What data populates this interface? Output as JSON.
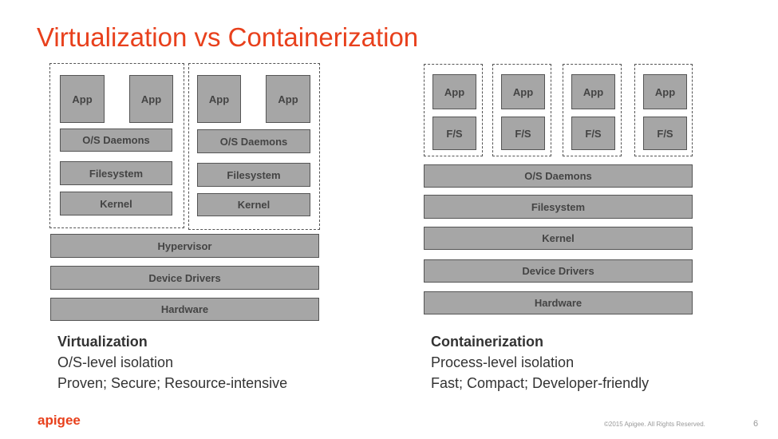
{
  "title": "Virtualization vs Containerization",
  "virtualization": {
    "vms": [
      {
        "apps": [
          "App",
          "App"
        ],
        "os_daemons": "O/S Daemons",
        "filesystem": "Filesystem",
        "kernel": "Kernel"
      },
      {
        "apps": [
          "App",
          "App"
        ],
        "os_daemons": "O/S Daemons",
        "filesystem": "Filesystem",
        "kernel": "Kernel"
      }
    ],
    "hypervisor": "Hypervisor",
    "device_drivers": "Device Drivers",
    "hardware": "Hardware",
    "caption": {
      "heading": "Virtualization",
      "line1": "O/S-level isolation",
      "line2": "Proven; Secure; Resource-intensive"
    }
  },
  "containerization": {
    "containers": [
      {
        "app": "App",
        "fs": "F/S"
      },
      {
        "app": "App",
        "fs": "F/S"
      },
      {
        "app": "App",
        "fs": "F/S"
      },
      {
        "app": "App",
        "fs": "F/S"
      }
    ],
    "os_daemons": "O/S Daemons",
    "filesystem": "Filesystem",
    "kernel": "Kernel",
    "device_drivers": "Device Drivers",
    "hardware": "Hardware",
    "caption": {
      "heading": "Containerization",
      "line1": "Process-level isolation",
      "line2": "Fast; Compact; Developer-friendly"
    }
  },
  "footer": {
    "logo": "apigee",
    "copyright": "©2015 Apigee. All Rights Reserved.",
    "page": "6"
  },
  "colors": {
    "accent": "#e8401c",
    "box": "#a6a6a6"
  }
}
